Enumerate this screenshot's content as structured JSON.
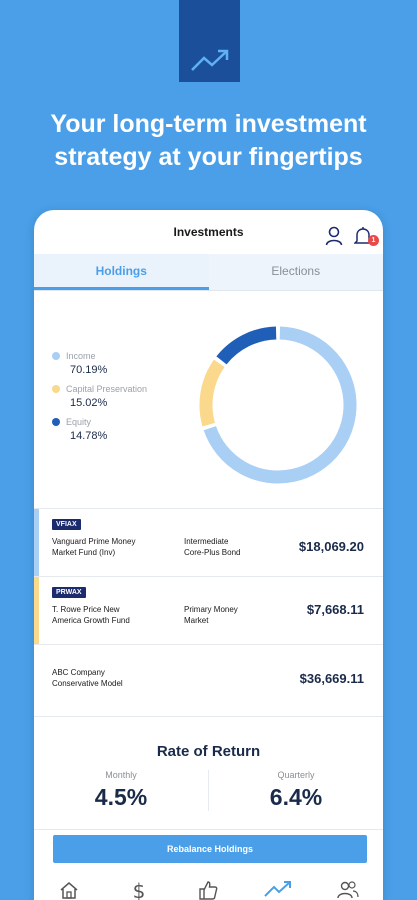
{
  "headline": {
    "line1": "Your long-term investment",
    "line2": "strategy at your fingertips"
  },
  "brand": {
    "icon": "trend-up-icon"
  },
  "header": {
    "title": "Investments",
    "notification_count": "1"
  },
  "tabs": [
    {
      "label": "Holdings"
    },
    {
      "label": "Elections"
    }
  ],
  "allocation": {
    "legend": [
      {
        "label": "Income",
        "pct": "70.19%",
        "color": "#a9cff5"
      },
      {
        "label": "Capital Preservation",
        "pct": "15.02%",
        "color": "#fad88c"
      },
      {
        "label": "Equity",
        "pct": "14.78%",
        "color": "#1f5fb8"
      }
    ]
  },
  "chart_data": {
    "type": "pie",
    "categories": [
      "Income",
      "Capital Preservation",
      "Equity"
    ],
    "values": [
      70.19,
      15.02,
      14.78
    ],
    "colors": [
      "#a9cff5",
      "#fad88c",
      "#1f5fb8"
    ]
  },
  "holdings": [
    {
      "ticker": "VFIAX",
      "name_line1": "Vanguard Prime Money",
      "name_line2": "Market Fund (Inv)",
      "category_line1": "Intermediate",
      "category_line2": "Core-Plus Bond",
      "value": "$18,069.20",
      "color": "#a9cff5"
    },
    {
      "ticker": "PRWAX",
      "name_line1": "T. Rowe Price New",
      "name_line2": "America Growth Fund",
      "category_line1": "Primary Money",
      "category_line2": "Market",
      "value": "$7,668.11",
      "color": "#fad88c"
    },
    {
      "ticker": "",
      "name_line1": "ABC Company",
      "name_line2": "Conservative Model",
      "category_line1": "",
      "category_line2": "",
      "value": "$36,669.11",
      "color": ""
    }
  ],
  "rate_of_return": {
    "title": "Rate of Return",
    "monthly_label": "Monthly",
    "monthly_value": "4.5%",
    "quarterly_label": "Quarterly",
    "quarterly_value": "6.4%"
  },
  "rebalance_label": "Rebalance Holdings",
  "nav": [
    {
      "icon": "home-icon"
    },
    {
      "icon": "dollar-icon"
    },
    {
      "icon": "thumbs-up-icon"
    },
    {
      "icon": "trend-up-icon"
    },
    {
      "icon": "people-icon"
    }
  ]
}
